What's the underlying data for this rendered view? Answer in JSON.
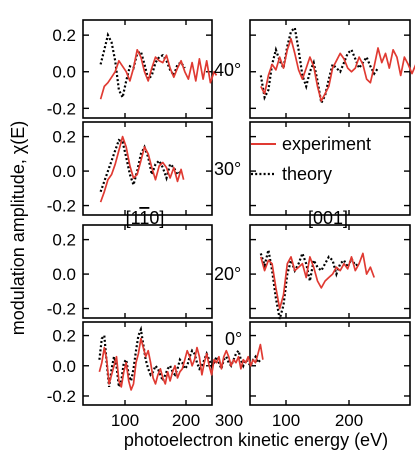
{
  "chart_data": {
    "type": "line",
    "ylabel": "modulation amplitude, χ(E)",
    "xlabel": "photoelectron kinetic energy (eV)",
    "ylim": [
      -0.22,
      0.25
    ],
    "xlim": [
      50,
      330
    ],
    "xticks": [
      100,
      200,
      300
    ],
    "xtick_labels": [
      "100",
      "200",
      "300"
    ],
    "yticks": [
      -0.2,
      0.0,
      0.2
    ],
    "ytick_labels": [
      "-0.2",
      "0.0",
      "0.2"
    ],
    "angle_labels": [
      "40°",
      "30°",
      "20°",
      "0°"
    ],
    "direction_labels": {
      "left": "[1̅ 1̅ 0]",
      "left_display": "[11̄ 0]",
      "right": "[001]"
    },
    "legend": {
      "experiment": "experiment",
      "theory": "theory",
      "colors": {
        "experiment": "#e03a32",
        "theory": "#000000"
      }
    },
    "panels": [
      {
        "row": 0,
        "col": 0,
        "angle": "40°",
        "direction": "[11̄0]",
        "experiment": {
          "x": [
            60,
            66,
            72,
            78,
            84,
            90,
            96,
            102,
            108,
            114,
            120,
            126,
            132,
            138,
            144,
            150,
            156,
            162,
            168,
            174,
            180,
            186,
            192,
            198,
            204,
            210,
            216,
            222,
            228,
            234,
            240,
            246,
            250
          ],
          "y": [
            -0.15,
            -0.08,
            -0.06,
            -0.03,
            0.0,
            0.06,
            0.03,
            0.0,
            -0.05,
            0.02,
            0.12,
            0.08,
            0.0,
            -0.05,
            0.02,
            0.08,
            0.06,
            0.05,
            0.09,
            0.02,
            -0.03,
            0.02,
            0.06,
            0.0,
            -0.04,
            0.05,
            -0.05,
            0.07,
            -0.04,
            0.06,
            -0.06,
            0.0,
            -0.02
          ]
        },
        "theory": {
          "x": [
            60,
            66,
            72,
            78,
            84,
            90,
            96,
            102,
            108,
            114,
            120,
            126,
            132,
            138,
            144,
            150,
            156,
            162,
            168,
            174,
            180,
            186,
            192,
            198
          ],
          "y": [
            0.04,
            0.12,
            0.2,
            0.16,
            0.06,
            -0.1,
            -0.14,
            -0.05,
            0.03,
            0.02,
            0.1,
            0.11,
            0.04,
            -0.04,
            -0.02,
            0.05,
            0.08,
            0.09,
            0.06,
            0.01,
            -0.02,
            0.04,
            0.05,
            0.02
          ]
        }
      },
      {
        "row": 0,
        "col": 1,
        "angle": "40°",
        "direction": "[001]",
        "experiment": {
          "x": [
            60,
            66,
            72,
            78,
            84,
            90,
            96,
            102,
            108,
            114,
            120,
            126,
            132,
            138,
            144,
            150,
            156,
            162,
            168,
            174,
            180,
            186,
            192,
            198,
            204,
            210,
            216,
            222,
            228,
            234,
            240,
            246,
            252,
            258,
            264,
            270,
            276,
            282,
            288,
            294,
            300,
            306,
            312,
            318,
            324
          ],
          "y": [
            -0.08,
            -0.12,
            -0.02,
            0.04,
            0.01,
            0.08,
            0.02,
            0.12,
            0.18,
            0.1,
            0.01,
            -0.04,
            0.02,
            0.08,
            0.03,
            -0.08,
            -0.16,
            -0.12,
            -0.08,
            0.02,
            0.06,
            0.1,
            0.07,
            0.02,
            0.0,
            0.02,
            0.08,
            0.04,
            -0.04,
            -0.06,
            0.03,
            0.13,
            0.05,
            0.1,
            0.02,
            0.12,
            0.08,
            -0.02,
            0.08,
            0.04,
            -0.01,
            0.04,
            0.01,
            0.03,
            -0.03
          ]
        },
        "theory": {
          "x": [
            60,
            66,
            72,
            78,
            84,
            90,
            96,
            102,
            108,
            114,
            120,
            126,
            132,
            138,
            144,
            150,
            156,
            162,
            168,
            174,
            180,
            186,
            192,
            198,
            204,
            210,
            216,
            222,
            228,
            234,
            240,
            246
          ],
          "y": [
            -0.02,
            -0.14,
            -0.1,
            0.04,
            0.12,
            0.06,
            0.02,
            0.14,
            0.22,
            0.24,
            0.12,
            -0.02,
            -0.08,
            0.0,
            0.05,
            -0.05,
            -0.17,
            -0.13,
            -0.04,
            0.04,
            0.02,
            0.0,
            0.05,
            0.1,
            0.12,
            0.07,
            0.02,
            0.05,
            0.08,
            0.03,
            -0.01,
            0.02
          ]
        }
      },
      {
        "row": 1,
        "col": 0,
        "angle": "30°",
        "direction": "[11̄0]",
        "experiment": {
          "x": [
            60,
            66,
            72,
            78,
            84,
            90,
            96,
            102,
            108,
            114,
            120,
            126,
            132,
            138,
            144,
            150,
            156,
            162,
            168,
            174,
            180,
            186,
            192,
            196
          ],
          "y": [
            -0.18,
            -0.12,
            -0.05,
            -0.02,
            0.04,
            0.12,
            0.2,
            0.14,
            0.03,
            -0.04,
            -0.02,
            0.06,
            0.14,
            0.1,
            0.02,
            -0.05,
            0.03,
            0.05,
            0.02,
            -0.04,
            0.02,
            -0.06,
            0.01,
            -0.05
          ]
        },
        "theory": {
          "x": [
            60,
            66,
            72,
            78,
            84,
            90,
            96,
            102,
            108,
            114,
            120,
            126,
            132,
            138,
            144,
            150,
            156,
            162,
            168,
            174,
            180,
            186,
            192
          ],
          "y": [
            -0.12,
            -0.06,
            0.0,
            0.06,
            0.12,
            0.18,
            0.17,
            0.08,
            -0.02,
            -0.08,
            0.0,
            0.1,
            0.14,
            0.08,
            -0.02,
            0.04,
            0.06,
            0.02,
            -0.04,
            0.04,
            0.02,
            -0.02,
            0.0
          ]
        }
      },
      {
        "row": 1,
        "col": 1,
        "angle": "30°",
        "direction": "[001]",
        "experiment": {
          "x": [],
          "y": []
        },
        "theory": {
          "x": [],
          "y": []
        }
      },
      {
        "row": 2,
        "col": 0,
        "angle": "20°",
        "direction": "[11̄0]",
        "experiment": {
          "x": [],
          "y": []
        },
        "theory": {
          "x": [],
          "y": []
        }
      },
      {
        "row": 2,
        "col": 1,
        "angle": "20°",
        "direction": "[001]",
        "experiment": {
          "x": [
            60,
            66,
            72,
            78,
            84,
            90,
            96,
            102,
            108,
            114,
            120,
            126,
            132,
            138,
            144,
            150,
            156,
            162,
            168,
            174,
            180,
            186,
            192,
            198,
            204,
            210,
            216,
            222,
            228,
            234,
            240
          ],
          "y": [
            0.1,
            0.02,
            0.08,
            0.06,
            -0.08,
            -0.2,
            -0.12,
            0.06,
            0.1,
            0.02,
            0.04,
            0.06,
            -0.02,
            0.1,
            0.04,
            -0.04,
            -0.08,
            -0.04,
            -0.02,
            0.0,
            0.04,
            0.02,
            0.06,
            0.03,
            0.1,
            0.02,
            0.06,
            0.12,
            0.0,
            0.04,
            -0.02
          ]
        },
        "theory": {
          "x": [
            60,
            66,
            72,
            78,
            84,
            90,
            96,
            102,
            108,
            114,
            120,
            126,
            132,
            138,
            144,
            150,
            156,
            162,
            168,
            174,
            180,
            186,
            192,
            198,
            204,
            210,
            216
          ],
          "y": [
            0.12,
            0.05,
            0.14,
            0.02,
            -0.14,
            -0.26,
            -0.18,
            0.0,
            0.08,
            0.02,
            0.06,
            0.12,
            0.06,
            -0.04,
            0.08,
            0.04,
            0.02,
            0.06,
            0.1,
            0.08,
            0.0,
            0.06,
            0.08,
            0.04,
            0.09,
            0.05,
            0.06
          ]
        }
      },
      {
        "row": 3,
        "col": 0,
        "angle": "0°",
        "direction": "[11̄0]",
        "experiment": {
          "x": [
            58,
            62,
            66,
            70,
            74,
            78,
            82,
            86,
            90,
            94,
            98,
            102,
            106,
            110,
            114,
            118,
            122,
            126,
            130,
            134,
            138,
            142,
            146,
            150,
            154,
            158,
            162,
            166,
            170,
            174,
            178,
            182,
            186,
            190,
            194,
            198,
            202,
            206,
            210,
            214,
            218,
            222,
            226,
            230,
            234,
            238,
            242,
            246,
            250,
            254,
            258,
            262,
            266,
            270,
            274,
            278,
            282,
            286,
            290,
            294,
            298,
            302,
            306,
            310,
            314,
            318,
            322,
            326
          ],
          "y": [
            -0.04,
            0.02,
            0.12,
            0.04,
            -0.12,
            -0.06,
            0.0,
            0.06,
            -0.1,
            -0.14,
            -0.04,
            0.02,
            -0.1,
            -0.16,
            -0.12,
            0.02,
            0.08,
            0.18,
            0.12,
            0.06,
            0.1,
            0.02,
            -0.08,
            -0.12,
            -0.06,
            -0.02,
            -0.08,
            -0.12,
            -0.04,
            -0.1,
            -0.04,
            0.0,
            -0.08,
            -0.04,
            -0.02,
            0.04,
            0.1,
            0.06,
            0.0,
            0.04,
            0.12,
            0.06,
            -0.06,
            0.02,
            0.08,
            0.0,
            -0.06,
            0.04,
            0.02,
            0.06,
            -0.02,
            0.06,
            0.1,
            0.06,
            0.0,
            0.04,
            0.02,
            0.06,
            -0.02,
            0.04,
            0.02,
            0.06,
            0.0,
            0.04,
            0.02,
            0.08,
            0.14,
            0.04
          ]
        },
        "theory": {
          "x": [
            58,
            62,
            66,
            70,
            74,
            78,
            82,
            86,
            90,
            94,
            98,
            102,
            106,
            110,
            114,
            118,
            122,
            126,
            130,
            134,
            138,
            142,
            146,
            150,
            154,
            158,
            162,
            166,
            170,
            174,
            178,
            182,
            186,
            190,
            194,
            198,
            202,
            206,
            210,
            214,
            218,
            222,
            226,
            230,
            234,
            238,
            242,
            246,
            250,
            254,
            258,
            262,
            266,
            270,
            274,
            278,
            282,
            286,
            290,
            294,
            298,
            302,
            306,
            310,
            314,
            318,
            322
          ],
          "y": [
            0.04,
            0.18,
            0.2,
            0.02,
            -0.14,
            -0.02,
            0.06,
            0.0,
            -0.14,
            -0.1,
            0.02,
            0.04,
            -0.06,
            -0.1,
            -0.02,
            0.1,
            0.2,
            0.24,
            0.14,
            0.04,
            -0.02,
            -0.06,
            -0.04,
            0.0,
            -0.02,
            -0.06,
            -0.1,
            -0.06,
            -0.02,
            0.0,
            -0.04,
            -0.06,
            -0.02,
            0.04,
            0.02,
            -0.02,
            0.0,
            0.06,
            0.1,
            0.08,
            0.02,
            -0.02,
            0.0,
            0.04,
            0.08,
            0.04,
            0.0,
            0.02,
            0.06,
            0.02,
            -0.02,
            0.04,
            0.06,
            0.02,
            0.0,
            0.04,
            0.08,
            0.1,
            0.04,
            0.0,
            0.04,
            0.02,
            0.0,
            0.04,
            0.06,
            0.02,
            0.04
          ]
        }
      },
      {
        "row": 3,
        "col": 1,
        "angle": "0°",
        "direction": "[001]",
        "experiment": {
          "x": [],
          "y": []
        },
        "theory": {
          "x": [],
          "y": []
        }
      }
    ]
  }
}
